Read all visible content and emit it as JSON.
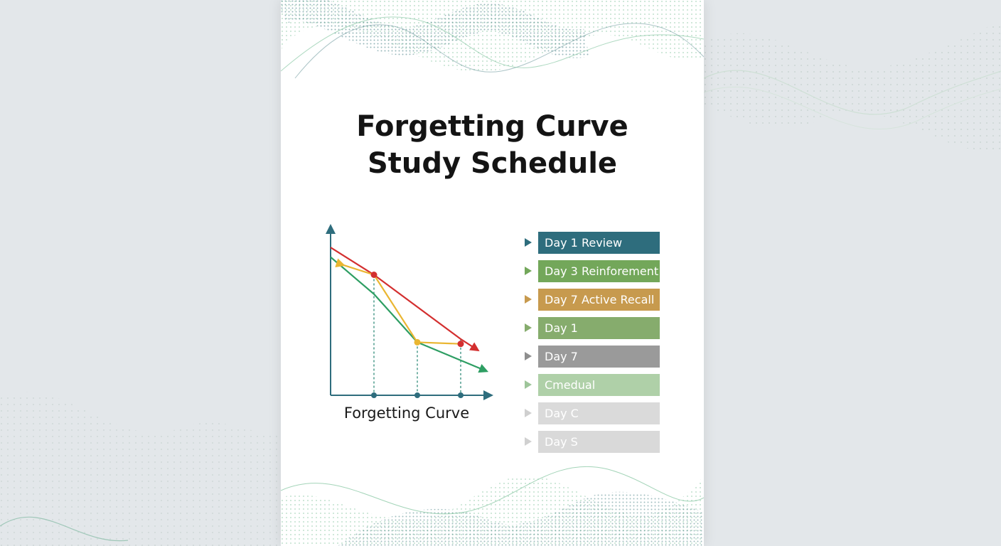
{
  "title": {
    "line1": "Forgetting Curve",
    "line2": "Study Schedule"
  },
  "colors": {
    "background": "#e3e7ea",
    "page": "#ffffff",
    "wave_teal": "#2f6f73",
    "wave_green": "#8cc9a6"
  },
  "chart_data": {
    "type": "line",
    "xlabel": "Forgetting Curve",
    "ylabel": "",
    "x_markers": [
      1,
      2,
      3
    ],
    "xlim": [
      0,
      4
    ],
    "ylim": [
      0,
      100
    ],
    "series": [
      {
        "color": "#d32f2f",
        "points": [
          [
            0,
            92
          ],
          [
            1,
            75
          ],
          [
            3,
            35
          ],
          [
            3.4,
            28
          ]
        ]
      },
      {
        "color": "#2e9e63",
        "points": [
          [
            0,
            86
          ],
          [
            1,
            63
          ],
          [
            2,
            33
          ],
          [
            3.6,
            15
          ]
        ]
      },
      {
        "color": "#eab632",
        "points": [
          [
            0.3,
            81
          ],
          [
            1,
            75
          ],
          [
            2,
            33
          ],
          [
            3,
            32
          ]
        ]
      }
    ],
    "points": [
      {
        "x": 1,
        "y": 75,
        "color": "#d32f2f"
      },
      {
        "x": 3,
        "y": 32,
        "color": "#d32f2f"
      },
      {
        "x": 2,
        "y": 33,
        "color": "#eab632"
      }
    ]
  },
  "legend": [
    {
      "label": "Day 1 Review",
      "color": "#2e6d7d",
      "marker_color": "#2e6d7d",
      "opacity": 1
    },
    {
      "label": "Day 3 Reinforement",
      "color": "#73a75a",
      "marker_color": "#73a75a",
      "opacity": 1
    },
    {
      "label": "Day 7 Active Recall",
      "color": "#c79a4e",
      "marker_color": "#c79a4e",
      "opacity": 1
    },
    {
      "label": "Day 1",
      "color": "#86ac6d",
      "marker_color": "#86ac6d",
      "opacity": 1
    },
    {
      "label": "Day 7",
      "color": "#9a9a9a",
      "marker_color": "#8e8e8e",
      "opacity": 1
    },
    {
      "label": "Cmedual",
      "color": "#afd0a8",
      "marker_color": "#9ec59a",
      "opacity": 1
    },
    {
      "label": "Day C",
      "color": "#dadada",
      "marker_color": "#cfcfcf",
      "opacity": 1
    },
    {
      "label": "Day S",
      "color": "#d9d9d9",
      "marker_color": "#d0d0d0",
      "opacity": 1
    }
  ]
}
